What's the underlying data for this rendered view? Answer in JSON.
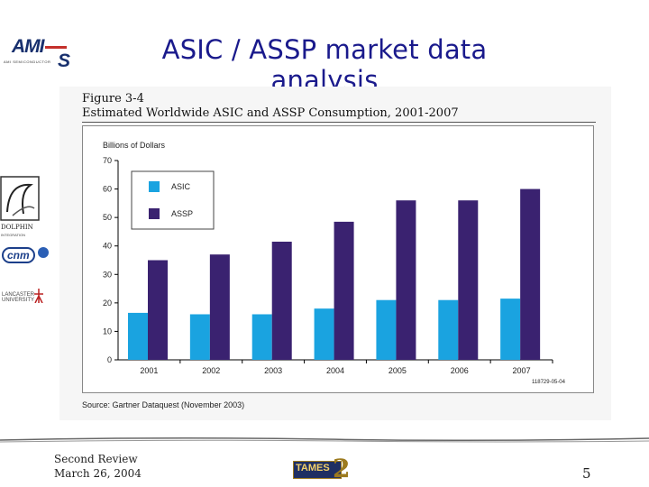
{
  "slide": {
    "title": "ASIC / ASSP market data analysis",
    "footer_review": "Second Review",
    "footer_date": "March 26, 2004",
    "page_number": "5"
  },
  "logos": {
    "ami_main": "AMI",
    "ami_s": "S",
    "ami_tagline": "AMI SEMICONDUCTOR",
    "dolphin": "DOLPHIN",
    "dolphin_sub": "INTEGRATION",
    "cnm": "cnm",
    "lancaster": "LANCASTER UNIVERSITY",
    "tames": "TAMES",
    "tames_num": "2"
  },
  "figure": {
    "label": "Figure 3-4",
    "caption": "Estimated Worldwide ASIC and ASSP Consumption, 2001-2007",
    "source": "Source: Gartner Dataquest (November 2003)",
    "code": "118729-05-04"
  },
  "colors": {
    "asic": "#1aa3e0",
    "assp": "#3a2270"
  },
  "chart_data": {
    "type": "bar",
    "title": "Estimated Worldwide ASIC and ASSP Consumption, 2001-2007",
    "xlabel": "",
    "ylabel": "Billions of Dollars",
    "ylim": [
      0,
      70
    ],
    "yticks": [
      0,
      10,
      20,
      30,
      40,
      50,
      60,
      70
    ],
    "grid": false,
    "legend": "top-left",
    "categories": [
      "2001",
      "2002",
      "2003",
      "2004",
      "2005",
      "2006",
      "2007"
    ],
    "series": [
      {
        "name": "ASIC",
        "values": [
          16.5,
          16,
          16,
          18,
          21,
          21,
          21.5
        ]
      },
      {
        "name": "ASSP",
        "values": [
          35,
          37,
          41.5,
          48.5,
          56,
          56,
          60
        ]
      }
    ]
  }
}
